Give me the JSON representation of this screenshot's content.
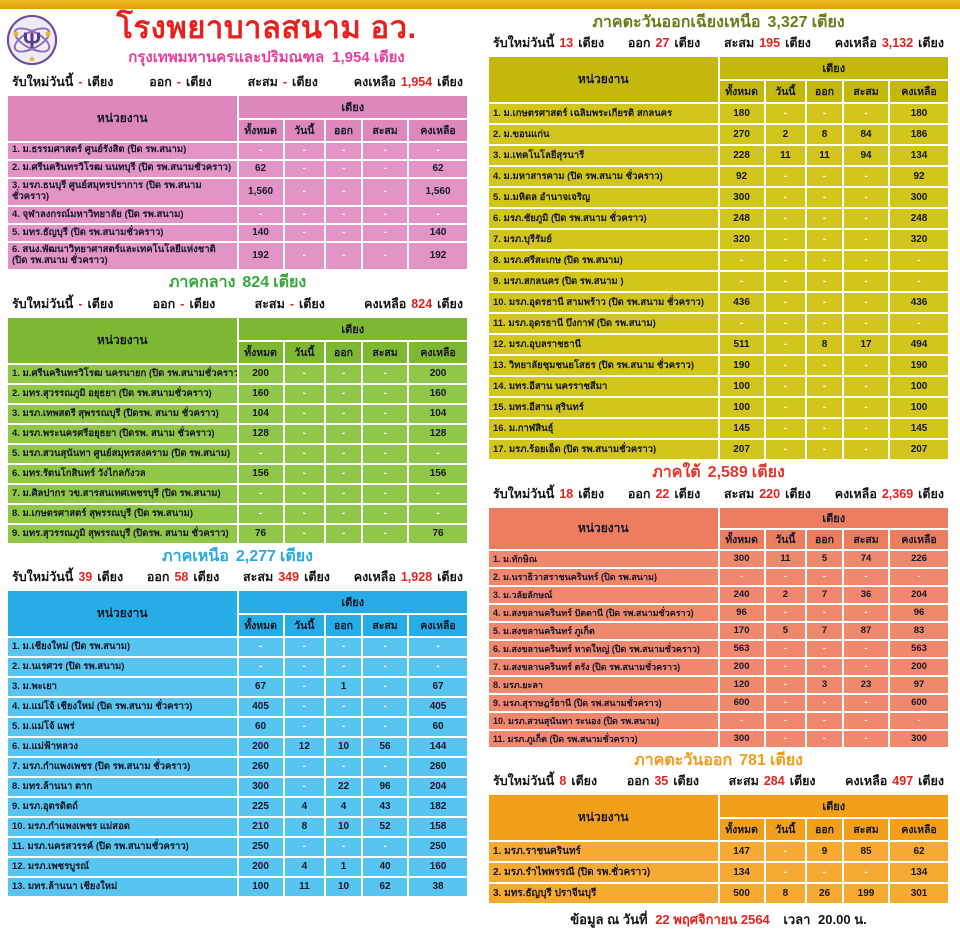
{
  "page": {
    "title": "โรงพยาบาลสนาม อว.",
    "footer": {
      "prefix": "ข้อมูล ณ วันที่",
      "date": "22 พฤศจิกายน 2564",
      "time_label": "เวลา",
      "time": "20.00 น."
    }
  },
  "labels": {
    "unit_col": "หน่วยงาน",
    "beds": "เตียง",
    "col_total": "ทั้งหมด",
    "col_today": "วันนี้",
    "col_out": "ออก",
    "col_cum": "สะสม",
    "col_remain": "คงเหลือ",
    "new_today": "รับใหม่วันนี้",
    "out": "ออก",
    "cum": "สะสม",
    "remain": "คงเหลือ"
  },
  "colors": {
    "accent_red": "#e8211d",
    "gold_bar": "#eda90e",
    "bkk_pink": "#e394c6",
    "central_green": "#90c748",
    "north_blue": "#58c5f0",
    "northeast_olive": "#d2c61c",
    "south_salmon": "#f0886d",
    "east_orange": "#f6aa31"
  },
  "sections": [
    {
      "id": "bkk",
      "mount": "mount-bkk",
      "theme": "pink",
      "region": "กรุงเทพมหานครและปริมณฑล",
      "total": "1,954",
      "summary": {
        "new_today": "-",
        "out": "-",
        "cum": "-",
        "remain": "1,954"
      },
      "rows": [
        {
          "name": "1. ม.ธรรมศาสตร์ ศูนย์รังสิต (ปิด รพ.สนาม)",
          "values": [
            "-",
            "-",
            "-",
            "-",
            "-"
          ]
        },
        {
          "name": "2. ม.ศรีนครินทรวิโรฒ นนทบุรี (ปิด รพ.สนามชั่วคราว)",
          "values": [
            "62",
            "-",
            "-",
            "-",
            "62"
          ]
        },
        {
          "name": "3. มรภ.ธนบุรี ศูนย์สมุทรปราการ (ปิด รพ.สนามชั่วคราว)",
          "values": [
            "1,560",
            "-",
            "-",
            "-",
            "1,560"
          ]
        },
        {
          "name": "4. จุฬาลงกรณ์มหาวิทยาลัย (ปิด รพ.สนาม)",
          "values": [
            "-",
            "-",
            "-",
            "-",
            "-"
          ]
        },
        {
          "name": "5. มทร.ธัญบุรี (ปิด รพ.สนามชั่วคราว)",
          "values": [
            "140",
            "-",
            "-",
            "-",
            "140"
          ]
        },
        {
          "name": "6. สนง.พัฒนาวิทยาศาสตร์และเทคโนโลยีแห่งชาติ (ปิด รพ.สนาม ชั่วคราว)",
          "values": [
            "192",
            "-",
            "-",
            "-",
            "192"
          ]
        }
      ]
    },
    {
      "id": "central",
      "mount": "mount-central",
      "theme": "green",
      "region": "ภาคกลาง",
      "total": "824",
      "summary": {
        "new_today": "-",
        "out": "-",
        "cum": "-",
        "remain": "824"
      },
      "rows": [
        {
          "name": "1. ม.ศรีนครินทรวิโรฒ นครนายก (ปิด รพ.สนามชั่วคราว)",
          "values": [
            "200",
            "-",
            "-",
            "-",
            "200"
          ]
        },
        {
          "name": "2. มทร.สุวรรณภูมิ อยุธยา (ปิด รพ.สนามชั่วคราว)",
          "values": [
            "160",
            "-",
            "-",
            "-",
            "160"
          ]
        },
        {
          "name": "3. มรภ.เทพสตรี สุพรรณบุรี (ปิดรพ. สนาม ชั่วคราว)",
          "values": [
            "104",
            "-",
            "-",
            "-",
            "104"
          ]
        },
        {
          "name": "4. มรภ.พระนครศรีอยุธยา (ปิดรพ. สนาม ชั่วคราว)",
          "values": [
            "128",
            "-",
            "-",
            "-",
            "128"
          ]
        },
        {
          "name": "5. มรภ.สวนสุนันทา ศูนย์สมุทรสงคราม (ปิด รพ.สนาม)",
          "values": [
            "-",
            "-",
            "-",
            "-",
            "-"
          ]
        },
        {
          "name": "6. มทร.รัตนโกสินทร์ วังไกลกังวล",
          "values": [
            "156",
            "-",
            "-",
            "-",
            "156"
          ]
        },
        {
          "name": "7. ม.ศิลปากร วข.สารสนเทศเพชรบุรี (ปิด รพ.สนาม)",
          "values": [
            "-",
            "-",
            "-",
            "-",
            "-"
          ]
        },
        {
          "name": "8. ม.เกษตรศาสตร์ สุพรรณบุรี (ปิด รพ.สนาม)",
          "values": [
            "-",
            "-",
            "-",
            "-",
            "-"
          ]
        },
        {
          "name": "9. มทร.สุวรรณภูมิ สุพรรณบุรี (ปิดรพ. สนาม ชั่วคราว)",
          "values": [
            "76",
            "-",
            "-",
            "-",
            "76"
          ]
        }
      ]
    },
    {
      "id": "north",
      "mount": "mount-north",
      "theme": "blue",
      "region": "ภาคเหนือ",
      "total": "2,277",
      "summary": {
        "new_today": "39",
        "out": "58",
        "cum": "349",
        "remain": "1,928"
      },
      "rows": [
        {
          "name": "1. ม.เชียงใหม่ (ปิด รพ.สนาม)",
          "values": [
            "-",
            "-",
            "-",
            "-",
            "-"
          ]
        },
        {
          "name": "2. ม.นเรศวร (ปิด รพ.สนาม)",
          "values": [
            "-",
            "-",
            "-",
            "-",
            "-"
          ]
        },
        {
          "name": "3. ม.พะเยา",
          "values": [
            "67",
            "-",
            "1",
            "-",
            "67"
          ]
        },
        {
          "name": "4. ม.แม่โจ้ เชียงใหม่ (ปิด รพ.สนาม ชั่วคราว)",
          "values": [
            "405",
            "-",
            "-",
            "-",
            "405"
          ]
        },
        {
          "name": "5. ม.แม่โจ้ แพร่",
          "values": [
            "60",
            "-",
            "-",
            "-",
            "60"
          ]
        },
        {
          "name": "6. ม.แม่ฟ้าหลวง",
          "values": [
            "200",
            "12",
            "10",
            "56",
            "144"
          ]
        },
        {
          "name": "7. มรภ.กำแพงเพชร (ปิด รพ.สนาม ชั่วคราว)",
          "values": [
            "260",
            "-",
            "-",
            "-",
            "260"
          ]
        },
        {
          "name": "8. มทร.ล้านนา ตาก",
          "values": [
            "300",
            "-",
            "22",
            "96",
            "204"
          ]
        },
        {
          "name": "9. มรภ.อุตรดิตถ์",
          "values": [
            "225",
            "4",
            "4",
            "43",
            "182"
          ]
        },
        {
          "name": "10. มรภ.กำแพงเพชร แม่สอด",
          "values": [
            "210",
            "8",
            "10",
            "52",
            "158"
          ]
        },
        {
          "name": "11. มรภ.นครสวรรค์ (ปิด รพ.สนามชั่วคราว)",
          "values": [
            "250",
            "-",
            "-",
            "-",
            "250"
          ]
        },
        {
          "name": "12. มรภ.เพชรบูรณ์",
          "values": [
            "200",
            "4",
            "1",
            "40",
            "160"
          ]
        },
        {
          "name": "13. มทร.ล้านนา เชียงใหม่",
          "values": [
            "100",
            "11",
            "10",
            "62",
            "38"
          ]
        }
      ]
    },
    {
      "id": "ne",
      "mount": "mount-ne",
      "theme": "olive",
      "region": "ภาคตะวันออกเฉียงเหนือ",
      "total": "3,327",
      "summary": {
        "new_today": "13",
        "out": "27",
        "cum": "195",
        "remain": "3,132"
      },
      "rows": [
        {
          "name": "1. ม.เกษตรศาสตร์ เฉลิมพระเกียรติ สกลนคร",
          "values": [
            "180",
            "-",
            "-",
            "-",
            "180"
          ]
        },
        {
          "name": "2. ม.ขอนแก่น",
          "values": [
            "270",
            "2",
            "8",
            "84",
            "186"
          ]
        },
        {
          "name": "3. ม.เทคโนโลยีสุรนารี",
          "values": [
            "228",
            "11",
            "11",
            "94",
            "134"
          ]
        },
        {
          "name": "4. ม.มหาสารคาม (ปิด รพ.สนาม ชั่วคราว)",
          "values": [
            "92",
            "-",
            "-",
            "-",
            "92"
          ]
        },
        {
          "name": "5. ม.มหิดล อำนาจเจริญ",
          "values": [
            "300",
            "-",
            "-",
            "-",
            "300"
          ]
        },
        {
          "name": "6. มรภ.ชัยภูมิ (ปิด รพ.สนาม ชั่วคราว)",
          "values": [
            "248",
            "-",
            "-",
            "-",
            "248"
          ]
        },
        {
          "name": "7. มรภ.บุรีรัมย์",
          "values": [
            "320",
            "-",
            "-",
            "-",
            "320"
          ]
        },
        {
          "name": "8. มรภ.ศรีสะเกษ (ปิด รพ.สนาม)",
          "values": [
            "-",
            "-",
            "-",
            "-",
            "-"
          ]
        },
        {
          "name": "9. มรภ.สกลนคร (ปิด รพ.สนาม )",
          "values": [
            "-",
            "-",
            "-",
            "-",
            "-"
          ]
        },
        {
          "name": "10. มรภ.อุดรธานี สามพร้าว (ปิด รพ.สนาม ชั่วคราว)",
          "values": [
            "436",
            "-",
            "-",
            "-",
            "436"
          ]
        },
        {
          "name": "11. มรภ.อุดรธานี บึงกาฬ (ปิด รพ.สนาม)",
          "values": [
            "-",
            "-",
            "-",
            "-",
            "-"
          ]
        },
        {
          "name": "12. มรภ.อุบลราชธานี",
          "values": [
            "511",
            "-",
            "8",
            "17",
            "494"
          ]
        },
        {
          "name": "13. วิทยาลัยชุมชนยโสธร (ปิด รพ.สนาม ชั่วคราว)",
          "values": [
            "190",
            "-",
            "-",
            "-",
            "190"
          ]
        },
        {
          "name": "14. มทร.อีสาน นครราชสีมา",
          "values": [
            "100",
            "-",
            "-",
            "-",
            "100"
          ]
        },
        {
          "name": "15. มทร.อีสาน สุรินทร์",
          "values": [
            "100",
            "-",
            "-",
            "-",
            "100"
          ]
        },
        {
          "name": "16. ม.กาฬสินธุ์",
          "values": [
            "145",
            "-",
            "-",
            "-",
            "145"
          ]
        },
        {
          "name": "17. มรภ.ร้อยเอ็ด (ปิด รพ.สนามชั่วคราว)",
          "values": [
            "207",
            "-",
            "-",
            "-",
            "207"
          ]
        }
      ]
    },
    {
      "id": "south",
      "mount": "mount-south",
      "theme": "salmon",
      "region": "ภาคใต้",
      "total": "2,589",
      "summary": {
        "new_today": "18",
        "out": "22",
        "cum": "220",
        "remain": "2,369"
      },
      "rows": [
        {
          "name": "1. ม.ทักษิณ",
          "values": [
            "300",
            "11",
            "5",
            "74",
            "226"
          ]
        },
        {
          "name": "2. ม.นราธิวาสราชนครินทร์ (ปิด รพ.สนาม)",
          "values": [
            "-",
            "-",
            "-",
            "-",
            "-"
          ]
        },
        {
          "name": "3. ม.วลัยลักษณ์",
          "values": [
            "240",
            "2",
            "7",
            "36",
            "204"
          ]
        },
        {
          "name": "4. ม.สงขลานครินทร์ ปัตตานี (ปิด รพ.สนามชั่วคราว)",
          "values": [
            "96",
            "-",
            "-",
            "-",
            "96"
          ]
        },
        {
          "name": "5. ม.สงขลานครินทร์ ภูเก็ต",
          "values": [
            "170",
            "5",
            "7",
            "87",
            "83"
          ]
        },
        {
          "name": "6. ม.สงขลานครินทร์ หาดใหญ่ (ปิด รพ.สนามชั่วคราว)",
          "values": [
            "563",
            "-",
            "-",
            "-",
            "563"
          ]
        },
        {
          "name": "7. ม.สงขลานครินทร์ ตรัง (ปิด รพ.สนามชั่วคราว)",
          "values": [
            "200",
            "-",
            "-",
            "-",
            "200"
          ]
        },
        {
          "name": "8. มรภ.ยะลา",
          "values": [
            "120",
            "-",
            "3",
            "23",
            "97"
          ]
        },
        {
          "name": "9. มรภ.สุราษฎร์ธานี (ปิด รพ.สนามชั่วคราว)",
          "values": [
            "600",
            "-",
            "-",
            "-",
            "600"
          ]
        },
        {
          "name": "10. มรภ.สวนสุนันทา ระนอง (ปิด รพ.สนาม)",
          "values": [
            "-",
            "-",
            "-",
            "-",
            "-"
          ]
        },
        {
          "name": "11. มรภ.ภูเก็ต (ปิด รพ.สนามชั่วคราว)",
          "values": [
            "300",
            "-",
            "-",
            "-",
            "300"
          ]
        }
      ]
    },
    {
      "id": "east",
      "mount": "mount-east",
      "theme": "orange",
      "region": "ภาคตะวันออก",
      "total": "781",
      "summary": {
        "new_today": "8",
        "out": "35",
        "cum": "284",
        "remain": "497"
      },
      "rows": [
        {
          "name": "1. มรภ.ราชนครินทร์",
          "values": [
            "147",
            "-",
            "9",
            "85",
            "62"
          ]
        },
        {
          "name": "2. มรภ.รำไพพรรณี (ปิด รพ.ชั่วคราว)",
          "values": [
            "134",
            "-",
            "-",
            "-",
            "134"
          ]
        },
        {
          "name": "3. มทร.ธัญบุรี ปราจีนบุรี",
          "values": [
            "500",
            "8",
            "26",
            "199",
            "301"
          ]
        }
      ]
    }
  ]
}
